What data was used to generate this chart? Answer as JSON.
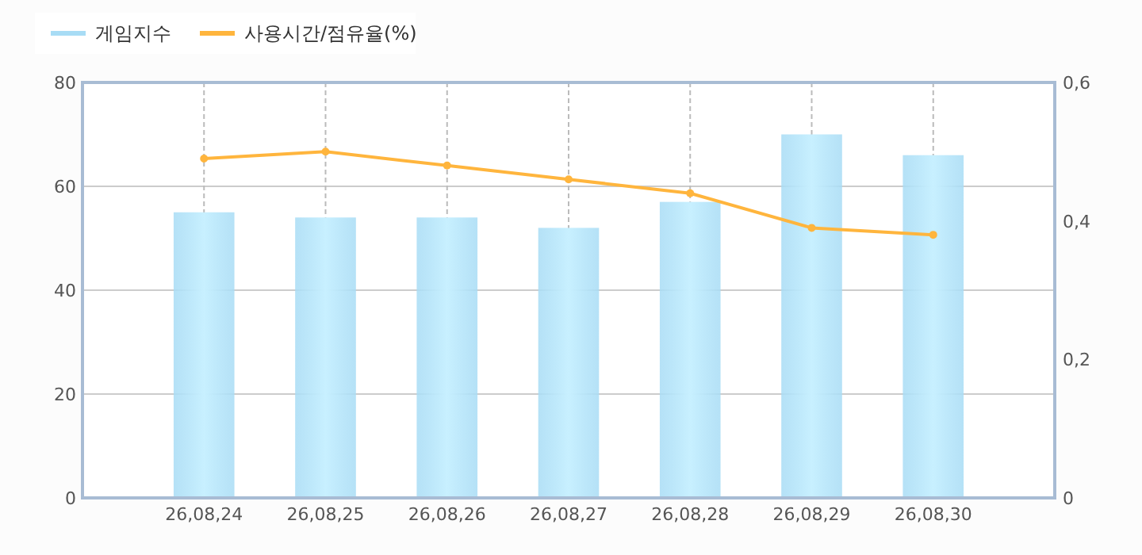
{
  "chart_data": {
    "type": "bar",
    "categories": [
      "26,08,24",
      "26,08,25",
      "26,08,26",
      "26,08,27",
      "26,08,28",
      "26,08,29",
      "26,08,30"
    ],
    "series": [
      {
        "name": "게임지수",
        "color": "#a8dcf5",
        "values": [
          55,
          54,
          54,
          52,
          57,
          70,
          66
        ]
      },
      {
        "name": "사용시간/점유율(%)",
        "type": "line",
        "axis": "y2",
        "color": "#ffb53d",
        "values": [
          0.49,
          0.5,
          0.48,
          0.46,
          0.44,
          0.39,
          0.38
        ]
      }
    ],
    "ylim": [
      0,
      80
    ],
    "yticks": [
      0,
      20,
      40,
      60,
      80
    ],
    "y2lim": [
      0,
      0.6
    ],
    "y2ticks": [
      {
        "value": 0,
        "label": "0"
      },
      {
        "value": 0.2,
        "label": "0,2"
      },
      {
        "value": 0.4,
        "label": "0,4"
      },
      {
        "value": 0.6,
        "label": "0,6"
      }
    ],
    "grid": true,
    "legend": "top left",
    "marker": "circle"
  }
}
